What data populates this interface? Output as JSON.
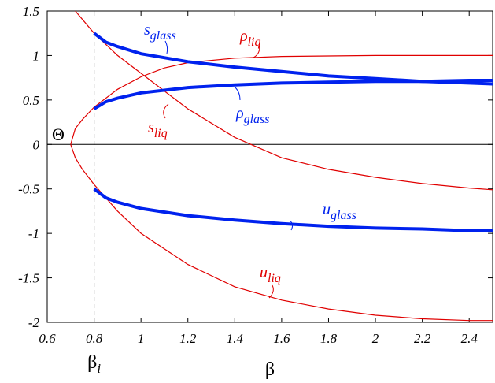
{
  "chart_data": {
    "type": "line",
    "xlabel": "β",
    "xlim": [
      0.6,
      2.5
    ],
    "ylim": [
      -2,
      1.5
    ],
    "xticks": [
      0.6,
      0.8,
      1,
      1.2,
      1.4,
      1.6,
      1.8,
      2,
      2.2,
      2.4
    ],
    "yticks": [
      -2,
      -1.5,
      -1,
      -0.5,
      0,
      0.5,
      1,
      1.5
    ],
    "annotation": "Θ",
    "marker": {
      "x": 0.8,
      "label": "β",
      "sub": "i"
    },
    "series": [
      {
        "name": "ρ",
        "sub": "liq",
        "color": "#e00000",
        "width": "thin",
        "x": [
          0.7,
          0.72,
          0.75,
          0.8,
          0.9,
          1.0,
          1.1,
          1.2,
          1.4,
          1.6,
          2.0,
          2.5
        ],
        "values": [
          0,
          0.18,
          0.28,
          0.42,
          0.62,
          0.76,
          0.86,
          0.92,
          0.97,
          0.99,
          1,
          1
        ]
      },
      {
        "name": "s",
        "sub": "liq",
        "color": "#e00000",
        "width": "thin",
        "x": [
          0.72,
          0.8,
          0.9,
          1.0,
          1.2,
          1.4,
          1.6,
          1.8,
          2.0,
          2.2,
          2.4,
          2.5
        ],
        "values": [
          1.5,
          1.25,
          1.0,
          0.8,
          0.4,
          0.08,
          -0.15,
          -0.28,
          -0.37,
          -0.44,
          -0.49,
          -0.51
        ]
      },
      {
        "name": "u",
        "sub": "liq",
        "color": "#e00000",
        "width": "thin",
        "x": [
          0.7,
          0.72,
          0.75,
          0.8,
          0.9,
          1.0,
          1.2,
          1.4,
          1.6,
          1.8,
          2.0,
          2.2,
          2.4,
          2.5
        ],
        "values": [
          0,
          -0.15,
          -0.28,
          -0.45,
          -0.75,
          -1.0,
          -1.35,
          -1.6,
          -1.75,
          -1.85,
          -1.92,
          -1.96,
          -1.98,
          -1.98
        ]
      },
      {
        "name": "s",
        "sub": "glass",
        "color": "#0022ee",
        "width": "thick",
        "x": [
          0.8,
          0.85,
          0.9,
          1.0,
          1.2,
          1.4,
          1.6,
          1.8,
          2.0,
          2.2,
          2.4,
          2.5
        ],
        "values": [
          1.25,
          1.15,
          1.1,
          1.02,
          0.93,
          0.87,
          0.82,
          0.77,
          0.74,
          0.71,
          0.69,
          0.68
        ]
      },
      {
        "name": "ρ",
        "sub": "glass",
        "color": "#0022ee",
        "width": "thick",
        "x": [
          0.8,
          0.85,
          0.9,
          1.0,
          1.2,
          1.4,
          1.6,
          1.8,
          2.0,
          2.2,
          2.4,
          2.5
        ],
        "values": [
          0.4,
          0.48,
          0.52,
          0.58,
          0.64,
          0.67,
          0.69,
          0.7,
          0.71,
          0.71,
          0.72,
          0.72
        ]
      },
      {
        "name": "u",
        "sub": "glass",
        "color": "#0022ee",
        "width": "thick",
        "x": [
          0.8,
          0.85,
          0.9,
          1.0,
          1.2,
          1.4,
          1.6,
          1.8,
          2.0,
          2.2,
          2.4,
          2.5
        ],
        "values": [
          -0.5,
          -0.6,
          -0.65,
          -0.72,
          -0.8,
          -0.85,
          -0.89,
          -0.92,
          -0.94,
          -0.95,
          -0.97,
          -0.97
        ]
      }
    ]
  }
}
